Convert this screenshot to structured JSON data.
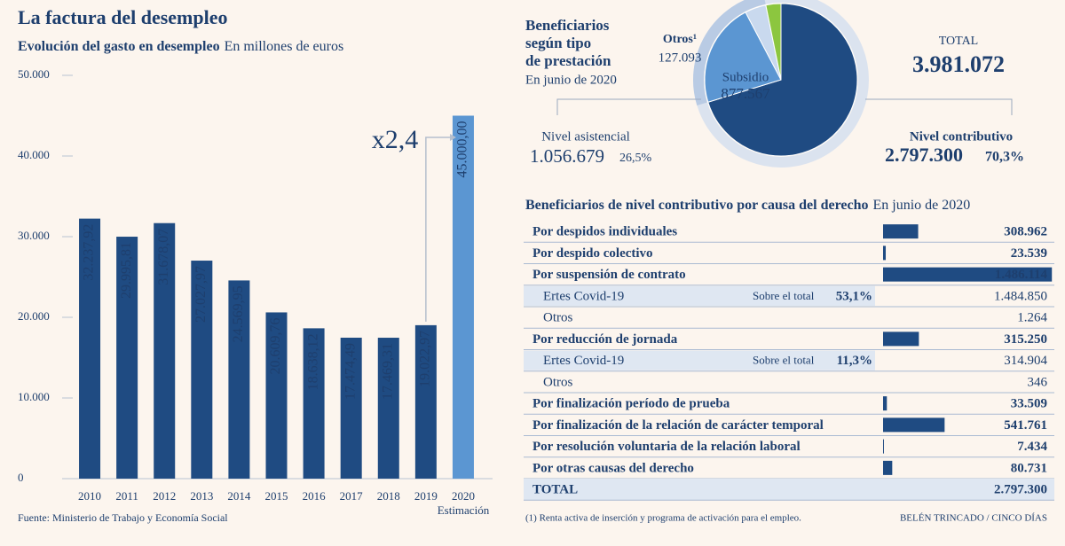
{
  "chart_data": [
    {
      "type": "bar",
      "title": "La factura del desempleo",
      "subtitle": "Evolución del gasto en desempleo",
      "unit": "En millones de euros",
      "categories": [
        "2010",
        "2011",
        "2012",
        "2013",
        "2014",
        "2015",
        "2016",
        "2017",
        "2018",
        "2019",
        "2020"
      ],
      "values": [
        32237.92,
        29995.81,
        31678.07,
        27027.97,
        24569.95,
        20609.76,
        18638.12,
        17474.49,
        17469.31,
        19022.97,
        45000.0
      ],
      "value_labels": [
        "32.237,92",
        "29.995,81",
        "31.678,07",
        "27.027,97",
        "24.569,95",
        "20.609,76",
        "18.638,12",
        "17.474,49",
        "17.469,31",
        "19.022,97",
        "45.000,00"
      ],
      "colors": [
        "#1f4b82",
        "#1f4b82",
        "#1f4b82",
        "#1f4b82",
        "#1f4b82",
        "#1f4b82",
        "#1f4b82",
        "#1f4b82",
        "#1f4b82",
        "#1f4b82",
        "#5b96d2"
      ],
      "last_category_note": "Estimación",
      "annotation": "x2,4",
      "annotation_color": "#c8203c",
      "ylim": [
        0,
        50000
      ],
      "yticks": [
        0,
        {
          "value": 10000,
          "label": "10.000"
        },
        {
          "value": 20000,
          "label": "20.000"
        },
        {
          "value": 30000,
          "label": "30.000"
        },
        {
          "value": 40000,
          "label": "40.000"
        },
        {
          "value": 50000,
          "label": "50.000"
        }
      ],
      "source": "Fuente: Ministerio de Trabajo y Economía Social"
    },
    {
      "type": "pie",
      "title_lines": [
        "Beneficiarios",
        "según tipo",
        "de prestación"
      ],
      "subtitle": "En junio de 2020",
      "total": {
        "label": "TOTAL",
        "value": 3981072,
        "value_label": "3.981.072"
      },
      "slices": [
        {
          "name": "Nivel contributivo",
          "value": 2797300,
          "value_label": "2.797.300",
          "share": 70.3,
          "share_label": "70,3%",
          "color": "#1f4b82"
        },
        {
          "name": "Subsidio",
          "value": 877567,
          "value_label": "877.567",
          "color": "#5b96d2"
        },
        {
          "name": null,
          "value": 179112,
          "color": "#c9d9ee"
        },
        {
          "name": "Otros¹",
          "value": 127093,
          "value_label": "127.093",
          "color": "#8cc63f"
        }
      ],
      "group": {
        "name": "Nivel asistencial",
        "value": 1056679,
        "value_label": "1.056.679",
        "share": 26.5,
        "share_label": "26,5%",
        "color": "#b9cbe4"
      }
    },
    {
      "type": "hbar",
      "title": "Beneficiarios de nivel contributivo por causa del derecho",
      "subtitle": "En junio de 2020",
      "color": "#1f4b82",
      "xlim": [
        0,
        1500000
      ],
      "rows": [
        {
          "label": "Por despidos individuales",
          "value": 308962,
          "value_label": "308.962",
          "style": "main"
        },
        {
          "label": "Por despido colectivo",
          "value": 23539,
          "value_label": "23.539",
          "style": "main"
        },
        {
          "label": "Por suspensión de contrato",
          "value": 1486114,
          "value_label": "1.486.114",
          "style": "main"
        },
        {
          "label": "Ertes Covid-19",
          "value": 1484850,
          "value_label": "1.484.850",
          "style": "sub",
          "note": "Sobre el total",
          "pct": 53.1,
          "pct_label": "53,1%"
        },
        {
          "label": "Otros",
          "value": 1264,
          "value_label": "1.264",
          "style": "sub"
        },
        {
          "label": "Por reducción de jornada",
          "value": 315250,
          "value_label": "315.250",
          "style": "main"
        },
        {
          "label": "Ertes Covid-19",
          "value": 314904,
          "value_label": "314.904",
          "style": "sub",
          "note": "Sobre el total",
          "pct": 11.3,
          "pct_label": "11,3%"
        },
        {
          "label": "Otros",
          "value": 346,
          "value_label": "346",
          "style": "sub"
        },
        {
          "label": "Por finalización período de prueba",
          "value": 33509,
          "value_label": "33.509",
          "style": "main"
        },
        {
          "label": "Por finalización de la relación de carácter temporal",
          "value": 541761,
          "value_label": "541.761",
          "style": "main"
        },
        {
          "label": "Por resolución voluntaria de la relación laboral",
          "value": 7434,
          "value_label": "7.434",
          "style": "main"
        },
        {
          "label": "Por otras causas del derecho",
          "value": 80731,
          "value_label": "80.731",
          "style": "main"
        },
        {
          "label": "TOTAL",
          "value": 2797300,
          "value_label": "2.797.300",
          "style": "total"
        }
      ],
      "footnote": "(1) Renta activa de inserción y programa de activación para el empleo.",
      "credit": "BELÉN TRINCADO / CINCO DÍAS"
    }
  ]
}
